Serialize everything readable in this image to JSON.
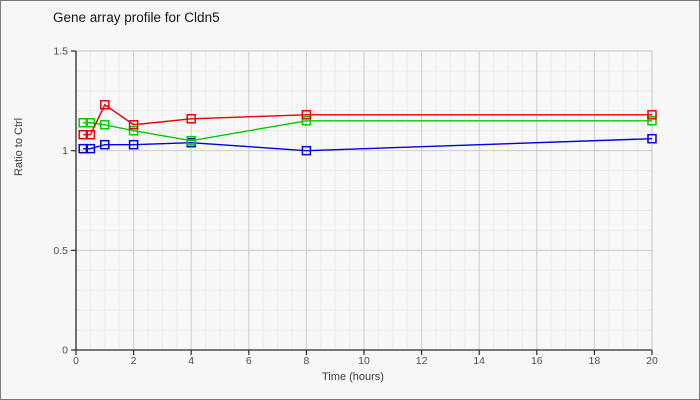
{
  "window": {
    "background": "#f8f8f8",
    "border_color": "#7a7a7a"
  },
  "chart": {
    "title": "Gene array profile for Cldn5",
    "xlabel": "Time (hours)",
    "ylabel": "Ratio to Ctrl"
  },
  "chart_data": {
    "type": "line",
    "title": "Gene array profile for Cldn5",
    "xlabel": "Time (hours)",
    "ylabel": "Ratio to Ctrl",
    "x": [
      0.25,
      0.5,
      1,
      2,
      4,
      8,
      20
    ],
    "series": [
      {
        "name": "blue-series",
        "color": "#0000dd",
        "values": [
          1.01,
          1.01,
          1.03,
          1.03,
          1.04,
          1.0,
          1.06
        ]
      },
      {
        "name": "green-series",
        "color": "#00cc00",
        "values": [
          1.14,
          1.14,
          1.13,
          1.1,
          1.05,
          1.15,
          1.15
        ]
      },
      {
        "name": "red-series",
        "color": "#ee0000",
        "values": [
          1.08,
          1.08,
          1.23,
          1.13,
          1.16,
          1.18,
          1.18
        ]
      }
    ],
    "xlim": [
      0,
      20
    ],
    "ylim": [
      0,
      1.5
    ],
    "x_ticks": [
      0,
      2,
      4,
      6,
      8,
      10,
      12,
      14,
      16,
      18,
      20
    ],
    "x_tick_labels": [
      "0",
      "2",
      "4",
      "6",
      "8",
      "10",
      "12",
      "14",
      "16",
      "18",
      "20"
    ],
    "y_ticks": [
      0,
      0.5,
      1,
      1.5
    ],
    "y_tick_labels": [
      "0",
      "0.5",
      "1",
      "1.5"
    ],
    "x_minor_step": 0.5,
    "y_minor_step": 0.1,
    "grid": true,
    "legend": false,
    "marker": "open-square",
    "colors": {
      "plot_background": "#f8f8f8",
      "minor_grid": "#eaeaea",
      "major_grid": "#cccccc",
      "axis_spine": "#2b2b2b",
      "box_border": "#c4c4c4"
    }
  }
}
